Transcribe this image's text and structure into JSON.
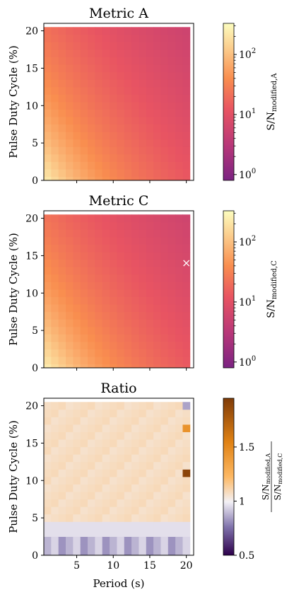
{
  "chart_data": [
    {
      "type": "heatmap",
      "title": "Metric A",
      "xlabel": "",
      "ylabel": "Pulse Duty Cycle (%)",
      "x_ticks": [
        "5",
        "10",
        "15",
        "20"
      ],
      "y_ticks": [
        "0",
        "5",
        "10",
        "15",
        "20"
      ],
      "xlim": [
        0.5,
        21
      ],
      "ylim": [
        0,
        21
      ],
      "colormap": "magma-like",
      "colorbar": {
        "label": "S/N",
        "label_sub": "modified,A",
        "scale": "log",
        "range": [
          0.8,
          330
        ],
        "ticks": [
          {
            "value": 1,
            "base": "10",
            "exp": "0"
          },
          {
            "value": 10,
            "base": "10",
            "exp": "1"
          },
          {
            "value": 100,
            "base": "10",
            "exp": "2"
          }
        ]
      },
      "marker": null
    },
    {
      "type": "heatmap",
      "title": "Metric C",
      "xlabel": "",
      "ylabel": "Pulse Duty Cycle (%)",
      "x_ticks": [
        "5",
        "10",
        "15",
        "20"
      ],
      "y_ticks": [
        "0",
        "5",
        "10",
        "15",
        "20"
      ],
      "xlim": [
        0.5,
        21
      ],
      "ylim": [
        0,
        21
      ],
      "colormap": "magma-like",
      "colorbar": {
        "label": "S/N",
        "label_sub": "modified,C",
        "scale": "log",
        "range": [
          0.8,
          330
        ],
        "ticks": [
          {
            "value": 1,
            "base": "10",
            "exp": "0"
          },
          {
            "value": 10,
            "base": "10",
            "exp": "1"
          },
          {
            "value": 100,
            "base": "10",
            "exp": "2"
          }
        ]
      },
      "marker": {
        "x": 20,
        "y": 14,
        "symbol": "×"
      }
    },
    {
      "type": "heatmap",
      "title": "Ratio",
      "xlabel": "Period (s)",
      "ylabel": "Pulse Duty Cycle (%)",
      "x_ticks": [
        "5",
        "10",
        "15",
        "20"
      ],
      "y_ticks": [
        "0",
        "5",
        "10",
        "15",
        "20"
      ],
      "xlim": [
        0.5,
        21
      ],
      "ylim": [
        0,
        21
      ],
      "colormap": "diverging-orange-purple",
      "colorbar": {
        "numerator": "S/N",
        "numerator_sub": "modified,A",
        "denominator": "S/N",
        "denominator_sub": "modified,C",
        "scale": "linear",
        "range": [
          0.5,
          1.95
        ],
        "ticks": [
          {
            "value": 0.5,
            "label": "0.5"
          },
          {
            "value": 1.0,
            "label": "1"
          },
          {
            "value": 1.5,
            "label": "1.5"
          }
        ]
      },
      "highlight_cells": [
        {
          "x": 20,
          "y": 20,
          "value": 0.85
        },
        {
          "x": 20,
          "y": 17,
          "value": 1.45
        },
        {
          "x": 20,
          "y": 11,
          "value": 1.9
        }
      ]
    }
  ]
}
